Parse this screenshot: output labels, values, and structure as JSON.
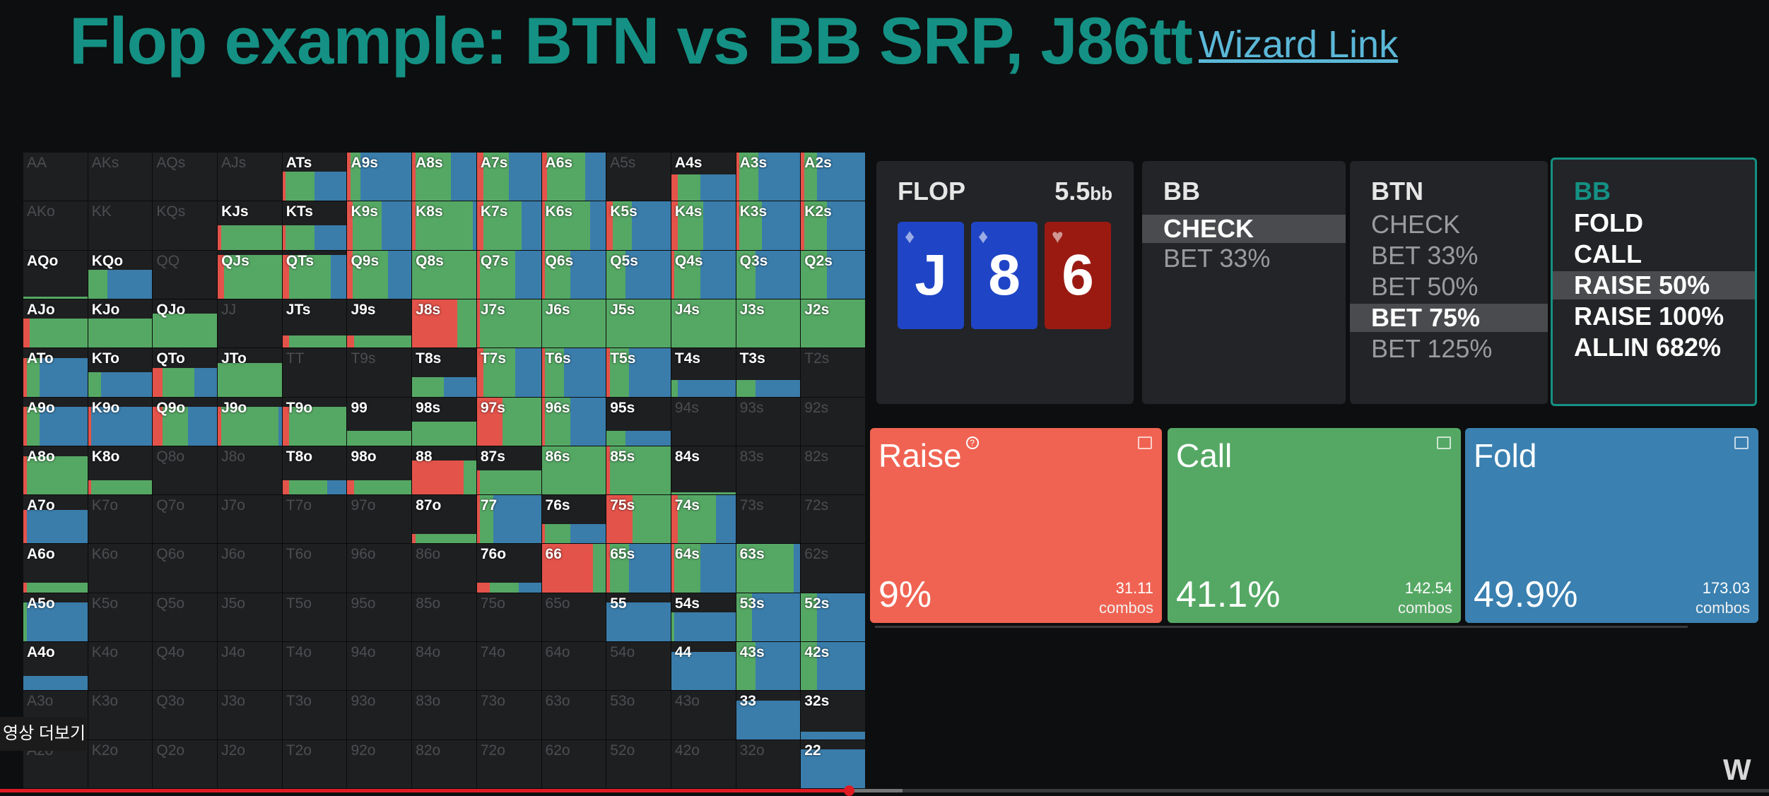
{
  "header": {
    "title": "Flop example: BTN vs BB SRP, J86tt",
    "link_label": "Wizard Link"
  },
  "colors": {
    "raise": "#e4534a",
    "call": "#55a864",
    "fold": "#3a7dab",
    "accent": "#149184",
    "cell_bg": "#1e1f21"
  },
  "grid": {
    "rows": [
      [
        "AA",
        "AKs",
        "AQs",
        "AJs",
        "ATs",
        "A9s",
        "A8s",
        "A7s",
        "A6s",
        "A5s",
        "A4s",
        "A3s",
        "A2s"
      ],
      [
        "AKo",
        "KK",
        "KQs",
        "KJs",
        "KTs",
        "K9s",
        "K8s",
        "K7s",
        "K6s",
        "K5s",
        "K4s",
        "K3s",
        "K2s"
      ],
      [
        "AQo",
        "KQo",
        "QQ",
        "QJs",
        "QTs",
        "Q9s",
        "Q8s",
        "Q7s",
        "Q6s",
        "Q5s",
        "Q4s",
        "Q3s",
        "Q2s"
      ],
      [
        "AJo",
        "KJo",
        "QJo",
        "JJ",
        "JTs",
        "J9s",
        "J8s",
        "J7s",
        "J6s",
        "J5s",
        "J4s",
        "J3s",
        "J2s"
      ],
      [
        "ATo",
        "KTo",
        "QTo",
        "JTo",
        "TT",
        "T9s",
        "T8s",
        "T7s",
        "T6s",
        "T5s",
        "T4s",
        "T3s",
        "T2s"
      ],
      [
        "A9o",
        "K9o",
        "Q9o",
        "J9o",
        "T9o",
        "99",
        "98s",
        "97s",
        "96s",
        "95s",
        "94s",
        "93s",
        "92s"
      ],
      [
        "A8o",
        "K8o",
        "Q8o",
        "J8o",
        "T8o",
        "98o",
        "88",
        "87s",
        "86s",
        "85s",
        "84s",
        "83s",
        "82s"
      ],
      [
        "A7o",
        "K7o",
        "Q7o",
        "J7o",
        "T7o",
        "97o",
        "87o",
        "77",
        "76s",
        "75s",
        "74s",
        "73s",
        "72s"
      ],
      [
        "A6o",
        "K6o",
        "Q6o",
        "J6o",
        "T6o",
        "96o",
        "86o",
        "76o",
        "66",
        "65s",
        "64s",
        "63s",
        "62s"
      ],
      [
        "A5o",
        "K5o",
        "Q5o",
        "J5o",
        "T5o",
        "95o",
        "85o",
        "75o",
        "65o",
        "55",
        "54s",
        "53s",
        "52s"
      ],
      [
        "A4o",
        "K4o",
        "Q4o",
        "J4o",
        "T4o",
        "94o",
        "84o",
        "74o",
        "64o",
        "54o",
        "44",
        "43s",
        "42s"
      ],
      [
        "A3o",
        "K3o",
        "Q3o",
        "J3o",
        "T3o",
        "93o",
        "83o",
        "73o",
        "63o",
        "53o",
        "43o",
        "33",
        "32s"
      ],
      [
        "A2o",
        "K2o",
        "Q2o",
        "J2o",
        "T2o",
        "92o",
        "82o",
        "72o",
        "62o",
        "52o",
        "42o",
        "32o",
        "22"
      ]
    ],
    "hands": {
      "ATs": [
        0.6,
        0.05,
        0.45,
        0.5
      ],
      "A9s": [
        1.0,
        0.05,
        0.15,
        0.8
      ],
      "A8s": [
        1.0,
        0.05,
        0.55,
        0.4
      ],
      "A7s": [
        1.0,
        0.1,
        0.4,
        0.5
      ],
      "A6s": [
        1.0,
        0.08,
        0.6,
        0.32
      ],
      "A4s": [
        0.55,
        0.1,
        0.35,
        0.55
      ],
      "A3s": [
        1.0,
        0.05,
        0.3,
        0.65
      ],
      "A2s": [
        1.0,
        0.05,
        0.2,
        0.75
      ],
      "KJs": [
        0.5,
        0.05,
        0.95,
        0.0
      ],
      "KTs": [
        0.5,
        0.05,
        0.45,
        0.5
      ],
      "K9s": [
        1.0,
        0.08,
        0.45,
        0.47
      ],
      "K8s": [
        1.0,
        0.05,
        0.9,
        0.05
      ],
      "K7s": [
        1.0,
        0.1,
        0.6,
        0.3
      ],
      "K6s": [
        1.0,
        0.05,
        0.7,
        0.25
      ],
      "K5s": [
        1.0,
        0.1,
        0.3,
        0.6
      ],
      "K4s": [
        1.0,
        0.1,
        0.4,
        0.5
      ],
      "K3s": [
        1.0,
        0.05,
        0.35,
        0.6
      ],
      "K2s": [
        1.0,
        0.05,
        0.35,
        0.6
      ],
      "AQo": [
        0.05,
        0.0,
        1.0,
        0.0
      ],
      "KQo": [
        0.6,
        0.0,
        0.3,
        0.7
      ],
      "QJs": [
        0.9,
        0.1,
        0.9,
        0.0
      ],
      "QTs": [
        0.9,
        0.1,
        0.65,
        0.25
      ],
      "Q9s": [
        1.0,
        0.08,
        0.55,
        0.37
      ],
      "Q8s": [
        1.0,
        0.0,
        1.0,
        0.0
      ],
      "Q7s": [
        1.0,
        0.05,
        0.55,
        0.4
      ],
      "Q6s": [
        1.0,
        0.05,
        0.4,
        0.55
      ],
      "Q5s": [
        1.0,
        0.0,
        0.3,
        0.7
      ],
      "Q4s": [
        1.0,
        0.05,
        0.4,
        0.55
      ],
      "Q3s": [
        1.0,
        0.0,
        0.3,
        0.7
      ],
      "Q2s": [
        1.0,
        0.0,
        0.4,
        0.6
      ],
      "AJo": [
        0.6,
        0.1,
        0.9,
        0.0
      ],
      "KJo": [
        0.6,
        0.0,
        1.0,
        0.0
      ],
      "QJo": [
        0.7,
        0.0,
        1.0,
        0.0
      ],
      "JTs": [
        0.25,
        0.1,
        0.9,
        0.0
      ],
      "J9s": [
        0.25,
        0.1,
        0.9,
        0.0
      ],
      "J8s": [
        1.0,
        0.7,
        0.3,
        0.0
      ],
      "J7s": [
        1.0,
        0.05,
        0.95,
        0.0
      ],
      "J6s": [
        1.0,
        0.0,
        1.0,
        0.0
      ],
      "J5s": [
        1.0,
        0.0,
        1.0,
        0.0
      ],
      "J4s": [
        1.0,
        0.0,
        1.0,
        0.0
      ],
      "J3s": [
        1.0,
        0.0,
        1.0,
        0.0
      ],
      "J2s": [
        1.0,
        0.0,
        1.0,
        0.0
      ],
      "ATo": [
        0.8,
        0.05,
        0.2,
        0.75
      ],
      "KTo": [
        0.5,
        0.0,
        0.2,
        0.8
      ],
      "QTo": [
        0.6,
        0.15,
        0.5,
        0.35
      ],
      "JTo": [
        0.7,
        0.0,
        1.0,
        0.0
      ],
      "T8s": [
        0.4,
        0.0,
        0.5,
        0.5
      ],
      "T7s": [
        1.0,
        0.1,
        0.5,
        0.4
      ],
      "T6s": [
        1.0,
        0.05,
        0.3,
        0.65
      ],
      "T5s": [
        1.0,
        0.05,
        0.3,
        0.65
      ],
      "T4s": [
        0.35,
        0.0,
        0.1,
        0.9
      ],
      "T3s": [
        0.35,
        0.0,
        0.3,
        0.7
      ],
      "A9o": [
        0.8,
        0.05,
        0.2,
        0.75
      ],
      "K9o": [
        0.8,
        0.05,
        0.0,
        0.95
      ],
      "Q9o": [
        0.8,
        0.15,
        0.4,
        0.45
      ],
      "J9o": [
        0.8,
        0.05,
        0.9,
        0.05
      ],
      "T9o": [
        0.8,
        0.1,
        0.9,
        0.0
      ],
      "99": [
        0.3,
        0.0,
        1.0,
        0.0
      ],
      "98s": [
        0.5,
        0.0,
        1.0,
        0.0
      ],
      "97s": [
        1.0,
        0.4,
        0.6,
        0.0
      ],
      "96s": [
        1.0,
        0.05,
        0.4,
        0.55
      ],
      "95s": [
        0.3,
        0.0,
        0.3,
        0.7
      ],
      "A8o": [
        0.8,
        0.05,
        0.95,
        0.0
      ],
      "K8o": [
        0.3,
        0.05,
        0.95,
        0.0
      ],
      "T8o": [
        0.3,
        0.1,
        0.6,
        0.3
      ],
      "98o": [
        0.3,
        0.1,
        0.9,
        0.0
      ],
      "88": [
        0.7,
        0.8,
        0.2,
        0.0
      ],
      "87s": [
        0.5,
        0.05,
        0.95,
        0.0
      ],
      "86s": [
        1.0,
        0.0,
        1.0,
        0.0
      ],
      "85s": [
        1.0,
        0.05,
        0.95,
        0.0
      ],
      "84s": [
        0.05,
        0.0,
        1.0,
        0.0
      ],
      "A7o": [
        0.7,
        0.05,
        0.0,
        0.95
      ],
      "87o": [
        0.2,
        0.05,
        0.95,
        0.0
      ],
      "77": [
        1.0,
        0.05,
        0.2,
        0.75
      ],
      "76s": [
        0.4,
        0.05,
        0.4,
        0.55
      ],
      "75s": [
        1.0,
        0.4,
        0.6,
        0.0
      ],
      "74s": [
        1.0,
        0.1,
        0.6,
        0.3
      ],
      "A6o": [
        0.2,
        0.05,
        0.95,
        0.0
      ],
      "76o": [
        0.2,
        0.2,
        0.45,
        0.35
      ],
      "66": [
        1.0,
        0.8,
        0.2,
        0.0
      ],
      "65s": [
        1.0,
        0.05,
        0.3,
        0.65
      ],
      "64s": [
        1.0,
        0.05,
        0.4,
        0.55
      ],
      "63s": [
        1.0,
        0.0,
        0.9,
        0.1
      ],
      "A5o": [
        0.8,
        0.0,
        0.05,
        0.95
      ],
      "55": [
        0.8,
        0.0,
        0.0,
        1.0
      ],
      "54s": [
        0.6,
        0.0,
        0.05,
        0.95
      ],
      "53s": [
        1.0,
        0.0,
        0.25,
        0.75
      ],
      "52s": [
        1.0,
        0.0,
        0.25,
        0.75
      ],
      "A4o": [
        0.3,
        0.0,
        0.0,
        1.0
      ],
      "44": [
        0.8,
        0.0,
        0.0,
        1.0
      ],
      "43s": [
        1.0,
        0.0,
        0.3,
        0.7
      ],
      "42s": [
        1.0,
        0.0,
        0.25,
        0.75
      ],
      "33": [
        0.8,
        0.0,
        0.0,
        1.0
      ],
      "32s": [
        0.15,
        0.0,
        0.0,
        1.0
      ],
      "22": [
        0.8,
        0.0,
        0.0,
        1.0
      ]
    }
  },
  "panels": {
    "flop": {
      "label": "FLOP",
      "pot_value": "5.5",
      "pot_unit": "bb",
      "cards": [
        {
          "rank": "J",
          "suit": "♦",
          "color": "#1f45c6"
        },
        {
          "rank": "8",
          "suit": "♦",
          "color": "#1f45c6"
        },
        {
          "rank": "6",
          "suit": "♥",
          "color": "#9a1a12"
        }
      ]
    },
    "bb1": {
      "label": "BB",
      "options": [
        "CHECK",
        "BET 33%"
      ],
      "selected": 0
    },
    "btn": {
      "label": "BTN",
      "options": [
        "CHECK",
        "BET 33%",
        "BET 50%",
        "BET 75%",
        "BET 125%"
      ],
      "selected": 3
    },
    "bb2": {
      "label": "BB",
      "options": [
        "FOLD",
        "CALL",
        "RAISE 50%",
        "RAISE 100%",
        "ALLIN 682%"
      ],
      "selected": 2
    }
  },
  "actions": [
    {
      "name": "Raise",
      "pct": "9%",
      "combos": "31.11",
      "unit": "combos",
      "color": "#f06352"
    },
    {
      "name": "Call",
      "pct": "41.1%",
      "combos": "142.54",
      "unit": "combos",
      "color": "#55a864"
    },
    {
      "name": "Fold",
      "pct": "49.9%",
      "combos": "173.03",
      "unit": "combos",
      "color": "#3a80b0"
    }
  ],
  "overlay": {
    "more_label": "영상 더보기",
    "logo": "W"
  },
  "progress": {
    "played": 0.48,
    "buffered": 0.51
  }
}
